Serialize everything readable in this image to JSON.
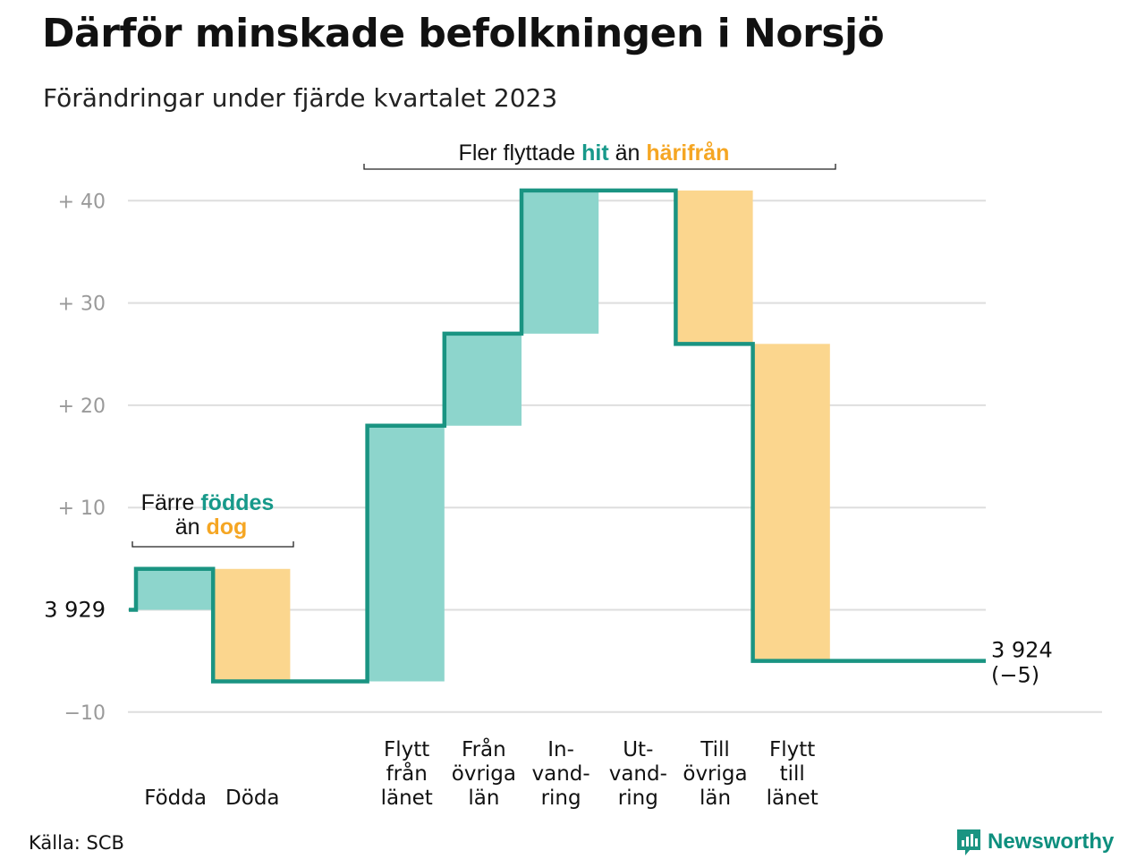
{
  "title": "Därför minskade befolkningen i Norsjö",
  "subtitle": "Förändringar under fjärde kvartalet 2023",
  "source": "Källa: SCB",
  "brand": {
    "name": "Newsworthy",
    "icon": "bar-chart-speech-bubble-icon"
  },
  "colors": {
    "increase": "#8dd5cc",
    "decrease": "#fbd68e",
    "line": "#1a9482",
    "teal_text": "#17998a",
    "orange_text": "#f5a623",
    "grid": "#dedede",
    "tick_text": "#9a9a9a"
  },
  "chart_data": {
    "type": "bar",
    "subtype": "waterfall",
    "start_label": "3 929",
    "start_value": 3929,
    "end_label": "3 924",
    "end_change": "(−5)",
    "end_value": 3924,
    "y_ticks": [
      {
        "value": 40,
        "label": "+  40"
      },
      {
        "value": 30,
        "label": "+  30"
      },
      {
        "value": 20,
        "label": "+  20"
      },
      {
        "value": 10,
        "label": "+  10"
      },
      {
        "value": 0,
        "label": "3  929"
      },
      {
        "value": -10,
        "label": "−10"
      }
    ],
    "ylim": [
      -10,
      40
    ],
    "grid": true,
    "steps": [
      {
        "label": [
          "Födda"
        ],
        "value": 4,
        "direction": "increase"
      },
      {
        "label": [
          "Döda"
        ],
        "value": -11,
        "direction": "decrease"
      },
      {
        "label": [
          ""
        ],
        "value": 0,
        "direction": "none"
      },
      {
        "label": [
          "Flytt",
          "från",
          "länet"
        ],
        "value": 25,
        "direction": "increase"
      },
      {
        "label": [
          "Från",
          "övriga",
          "län"
        ],
        "value": 9,
        "direction": "increase"
      },
      {
        "label": [
          "In-",
          "vand-",
          "ring"
        ],
        "value": 14,
        "direction": "increase"
      },
      {
        "label": [
          "Ut-",
          "vand-",
          "ring"
        ],
        "value": 0,
        "direction": "none"
      },
      {
        "label": [
          "Till",
          "övriga",
          "län"
        ],
        "value": -15,
        "direction": "decrease"
      },
      {
        "label": [
          "Flytt",
          "till",
          "länet"
        ],
        "value": -31,
        "direction": "decrease"
      }
    ],
    "annotations": {
      "births": {
        "line1_plain": "Färre",
        "line1_teal": "föddes",
        "line2_plain": "än",
        "line2_orange": "dog"
      },
      "moves": {
        "plain1": "Fler flyttade",
        "teal": "hit",
        "plain2": "än",
        "orange": "härifrån"
      }
    }
  }
}
